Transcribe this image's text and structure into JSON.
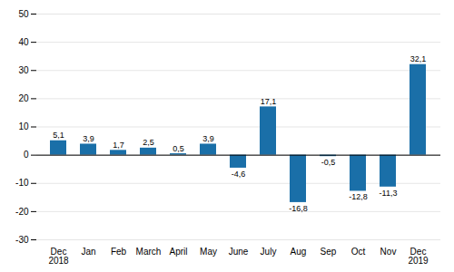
{
  "chart_data": {
    "type": "bar",
    "categories": [
      "Dec\n2018",
      "Jan",
      "Feb",
      "March",
      "April",
      "May",
      "June",
      "July",
      "Aug",
      "Sep",
      "Oct",
      "Nov",
      "Dec\n2019"
    ],
    "values": [
      5.1,
      3.9,
      1.7,
      2.5,
      0.5,
      3.9,
      -4.6,
      17.1,
      -16.8,
      -0.5,
      -12.8,
      -11.3,
      32.1
    ],
    "value_labels": [
      "5,1",
      "3,9",
      "1,7",
      "2,5",
      "0,5",
      "3,9",
      "-4,6",
      "17,1",
      "-16,8",
      "-0,5",
      "-12,8",
      "-11,3",
      "32,1"
    ],
    "color": "#1a6fa8",
    "ylim": [
      -30,
      50
    ],
    "yticks": [
      -30,
      -20,
      -10,
      0,
      10,
      20,
      30,
      40,
      50
    ],
    "grid": true,
    "data_labels": true
  }
}
